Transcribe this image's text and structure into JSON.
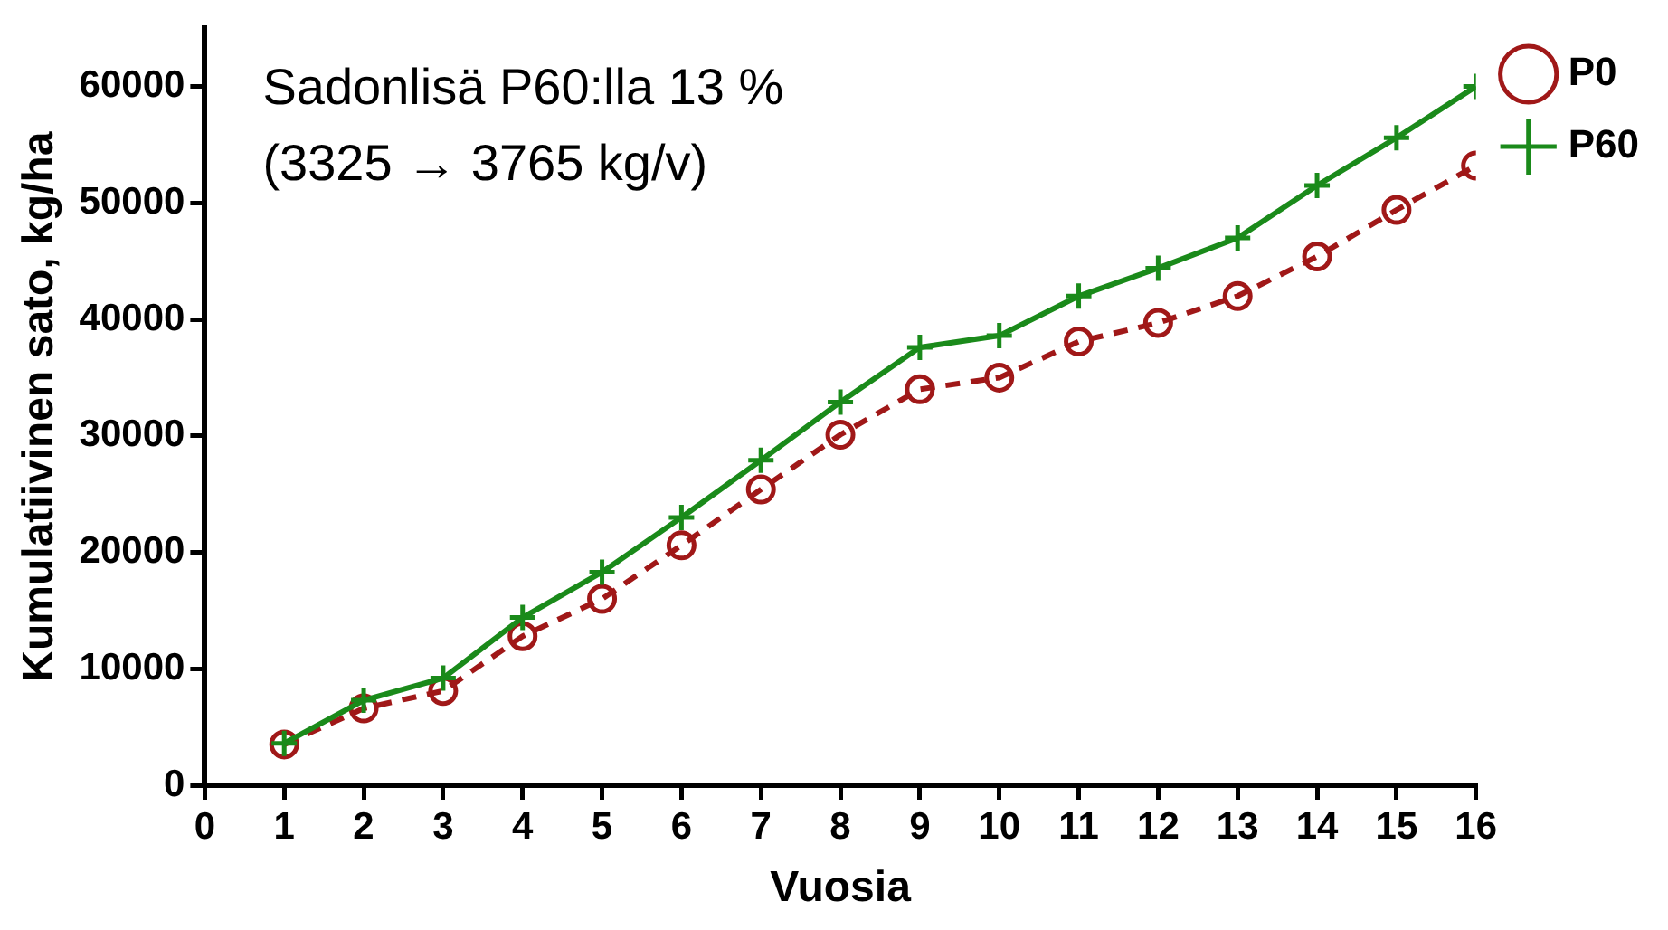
{
  "chart_data": {
    "type": "line",
    "xlabel": "Vuosia",
    "ylabel": "Kumulatiivinen sato, kg/ha",
    "annotations": [
      "Sadonlisä P60:lla 13 %",
      "(3325 → 3765 kg/v)"
    ],
    "x": [
      1,
      2,
      3,
      4,
      5,
      6,
      7,
      8,
      9,
      10,
      11,
      12,
      13,
      14,
      15,
      16
    ],
    "series": [
      {
        "name": "P0",
        "color": "#a01818",
        "marker": "circle",
        "line_style": "dashed",
        "values": [
          3500,
          6600,
          8100,
          12800,
          16000,
          20600,
          25400,
          30100,
          34000,
          35000,
          38100,
          39700,
          42000,
          45400,
          49400,
          53200
        ]
      },
      {
        "name": "P60",
        "color": "#1a8a1a",
        "marker": "cross",
        "line_style": "solid",
        "values": [
          3600,
          7300,
          9200,
          14400,
          18300,
          23000,
          27900,
          32900,
          37600,
          38600,
          42000,
          44400,
          47000,
          51500,
          55600,
          60000
        ]
      }
    ],
    "xlim": [
      0,
      16
    ],
    "xticks": [
      0,
      1,
      2,
      3,
      4,
      5,
      6,
      7,
      8,
      9,
      10,
      11,
      12,
      13,
      14,
      15,
      16
    ],
    "ylim": [
      0,
      65000
    ],
    "yticks": [
      0,
      10000,
      20000,
      30000,
      40000,
      50000,
      60000
    ],
    "grid": false,
    "legend": "top right"
  }
}
